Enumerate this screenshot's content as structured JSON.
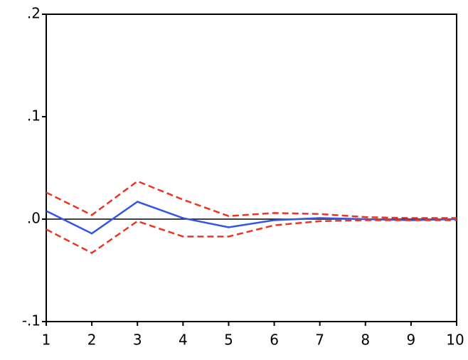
{
  "chart_data": {
    "type": "line",
    "x": [
      1,
      2,
      3,
      4,
      5,
      6,
      7,
      8,
      9,
      10
    ],
    "xlim": [
      1,
      10
    ],
    "xticks": [
      1,
      2,
      3,
      4,
      5,
      6,
      7,
      8,
      9,
      10
    ],
    "ylim": [
      -0.1,
      0.2
    ],
    "yticks": [
      {
        "value": -0.1,
        "label": "-.1"
      },
      {
        "value": 0,
        "label": ".0"
      },
      {
        "value": 0.1,
        "label": ".1"
      },
      {
        "value": 0.2,
        "label": ".2"
      }
    ],
    "zero_line": true,
    "series": [
      {
        "color": "#3355e6",
        "dash": false,
        "values": [
          0.008,
          -0.014,
          0.017,
          0.001,
          -0.008,
          -0.001,
          0.001,
          0.0,
          -0.001,
          0.0
        ]
      },
      {
        "color": "#ee3322",
        "dash": true,
        "values": [
          0.026,
          0.004,
          0.037,
          0.019,
          0.003,
          0.006,
          0.005,
          0.002,
          0.001,
          0.001
        ]
      },
      {
        "color": "#ee3322",
        "dash": true,
        "values": [
          -0.01,
          -0.033,
          -0.002,
          -0.017,
          -0.017,
          -0.006,
          -0.002,
          -0.001,
          -0.001,
          -0.001
        ]
      }
    ]
  }
}
